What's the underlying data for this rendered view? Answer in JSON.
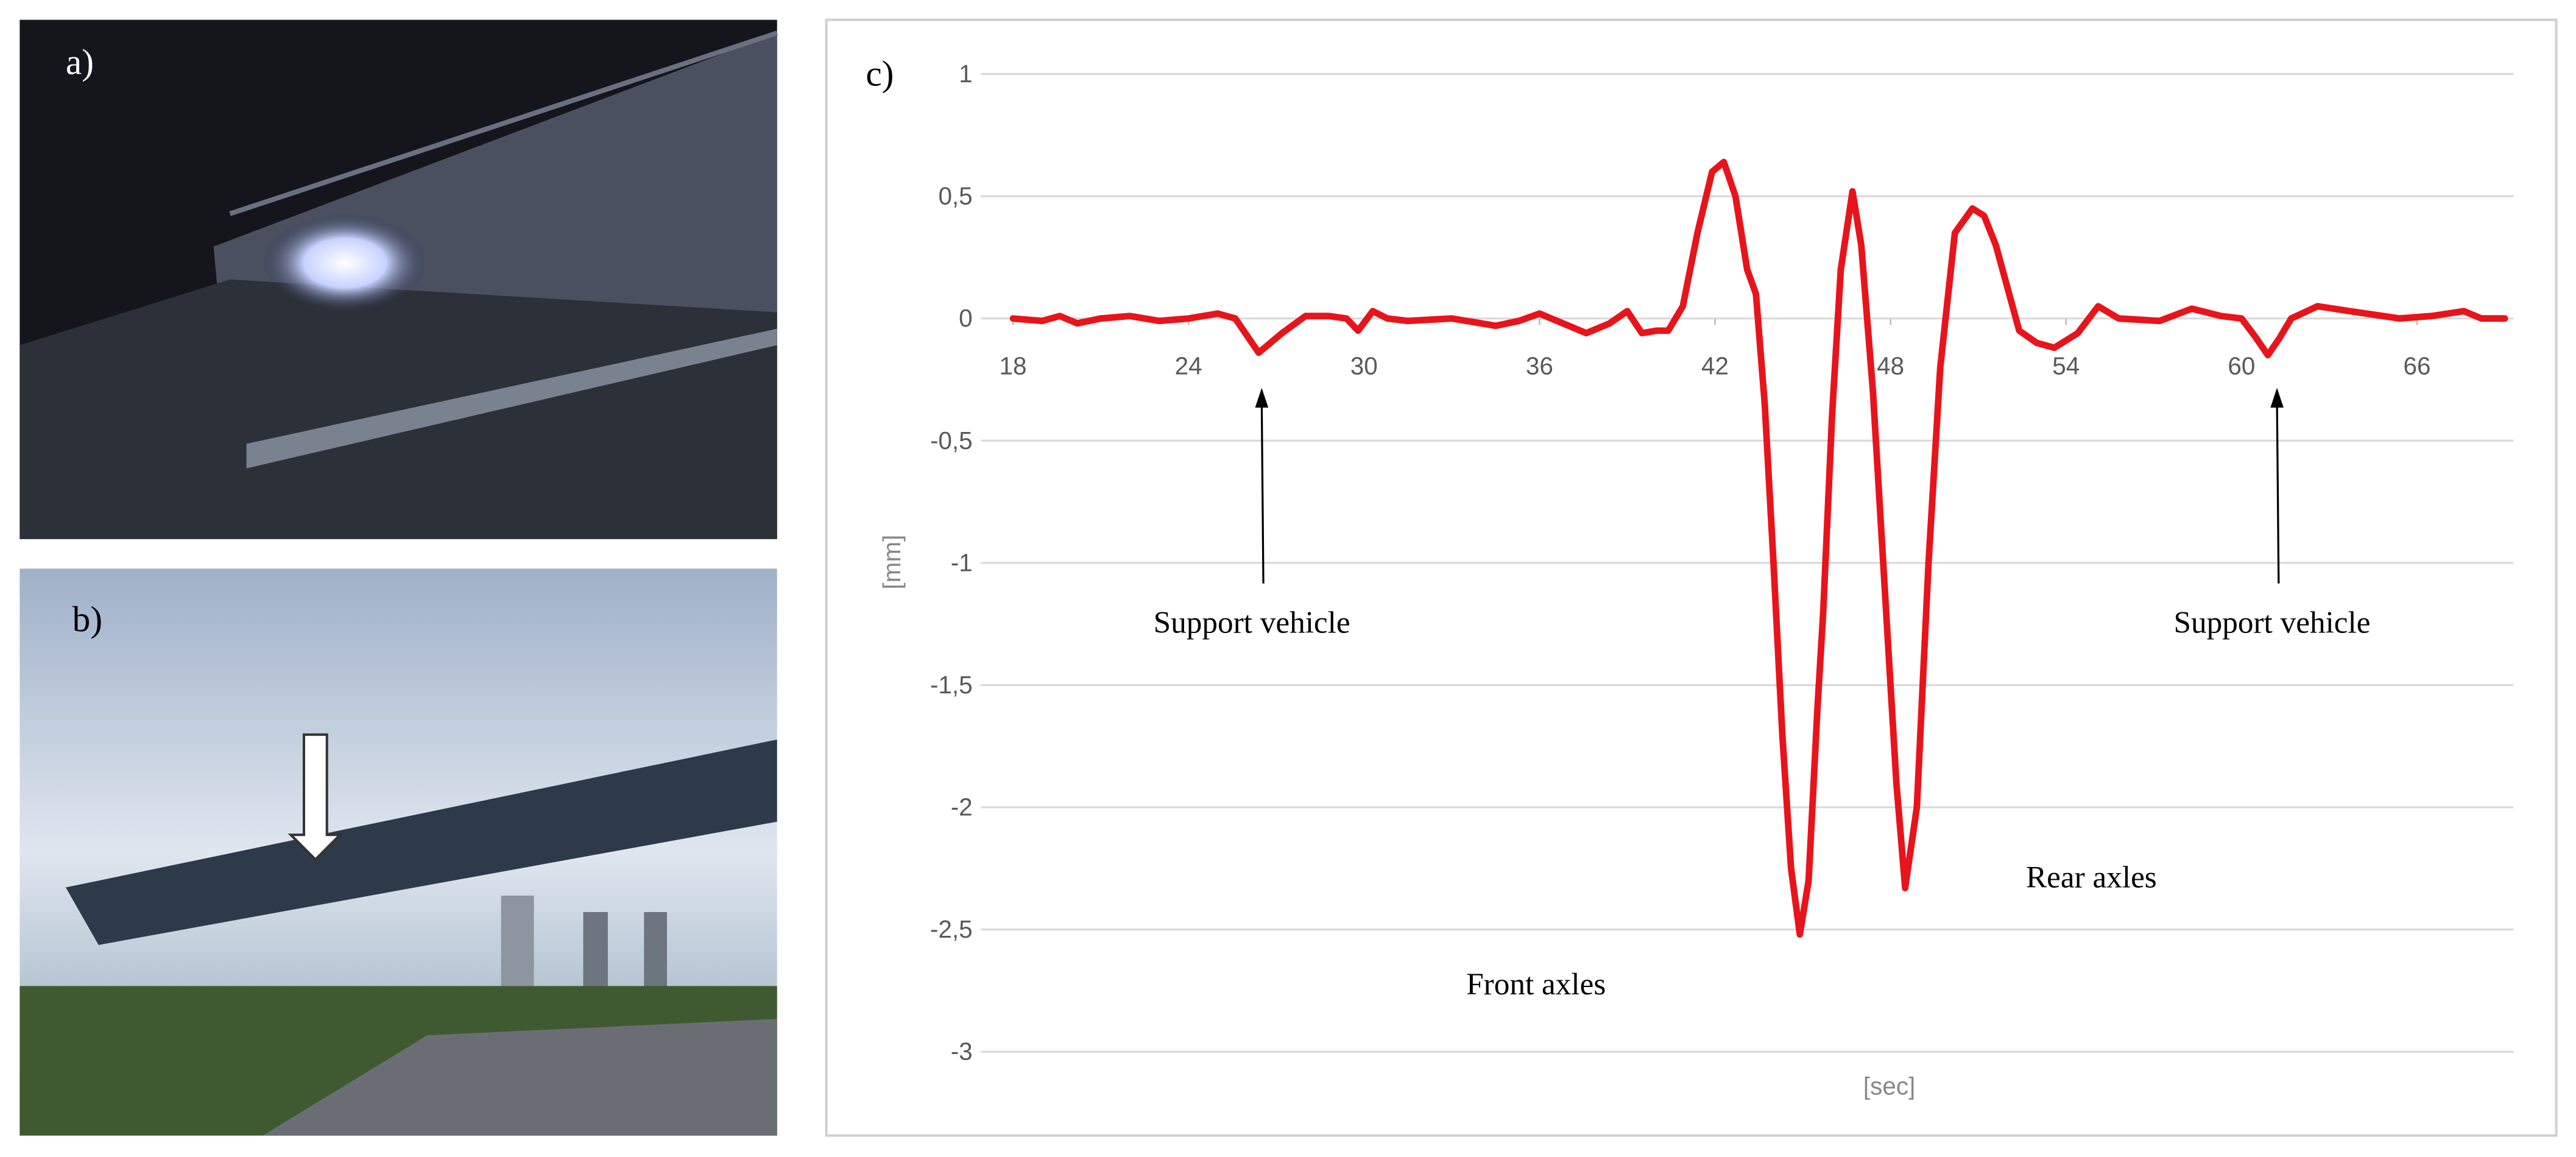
{
  "panels": {
    "a": "a)",
    "b": "b)"
  },
  "chart_data": {
    "type": "line",
    "panel_label": "c)",
    "x_label": "[sec]",
    "y_label": "[mm]",
    "xlim": [
      16.9,
      69.3
    ],
    "xticks": [
      18,
      24,
      30,
      36,
      42,
      48,
      54,
      60,
      66
    ],
    "ylim": [
      -3,
      1
    ],
    "yticks": [
      1,
      {
        "value": 0.5,
        "label": "0,5"
      },
      0,
      {
        "value": -0.5,
        "label": "-0,5"
      },
      -1,
      {
        "value": -1.5,
        "label": "-1,5"
      },
      -2,
      {
        "value": -2.5,
        "label": "-2,5"
      },
      -3
    ],
    "grid": true,
    "annotations": [
      "Support vehicle",
      "Support vehicle",
      "Front axles",
      "Rear axles"
    ],
    "series": [
      {
        "color": "#e8141b",
        "x": [
          18,
          19,
          19.6,
          20.2,
          21,
          22,
          23,
          24,
          25,
          25.6,
          26.4,
          27.2,
          28,
          28.8,
          29.4,
          29.8,
          30.3,
          30.8,
          31.5,
          33,
          34.5,
          35.3,
          36,
          36.8,
          37.6,
          38.4,
          39,
          39.5,
          40,
          40.4,
          40.9,
          41.4,
          41.9,
          42.3,
          42.7,
          43.1,
          43.4,
          43.7,
          44,
          44.3,
          44.6,
          44.9,
          45.2,
          45.5,
          45.7,
          46,
          46.3,
          46.7,
          47,
          47.4,
          47.8,
          48.2,
          48.5,
          48.9,
          49.3,
          49.7,
          50.2,
          50.8,
          51.2,
          51.6,
          52.4,
          53,
          53.6,
          54.4,
          55.1,
          55.8,
          57.2,
          58.3,
          59.3,
          60,
          60.5,
          60.9,
          61.3,
          61.7,
          62.6,
          63.7,
          65.4,
          66.5,
          67.6,
          68.2,
          69
        ],
        "values": [
          0,
          -0.01,
          0.01,
          -0.02,
          0,
          0.01,
          -0.01,
          0,
          0.02,
          0,
          -0.14,
          -0.06,
          0.01,
          0.01,
          0,
          -0.05,
          0.03,
          0,
          -0.01,
          0,
          -0.03,
          -0.01,
          0.02,
          -0.02,
          -0.06,
          -0.02,
          0.03,
          -0.06,
          -0.05,
          -0.05,
          0.05,
          0.35,
          0.6,
          0.64,
          0.5,
          0.2,
          0.1,
          -0.35,
          -1,
          -1.7,
          -2.25,
          -2.52,
          -2.3,
          -1.6,
          -1.2,
          -0.4,
          0.2,
          0.52,
          0.3,
          -0.3,
          -1.1,
          -1.9,
          -2.33,
          -2.0,
          -1,
          -0.2,
          0.35,
          0.45,
          0.42,
          0.3,
          -0.05,
          -0.1,
          -0.12,
          -0.06,
          0.05,
          0,
          -0.01,
          0.04,
          0.01,
          0,
          -0.08,
          -0.15,
          -0.08,
          0,
          0.05,
          0.03,
          0,
          0.01,
          0.03,
          0,
          0
        ]
      }
    ]
  }
}
